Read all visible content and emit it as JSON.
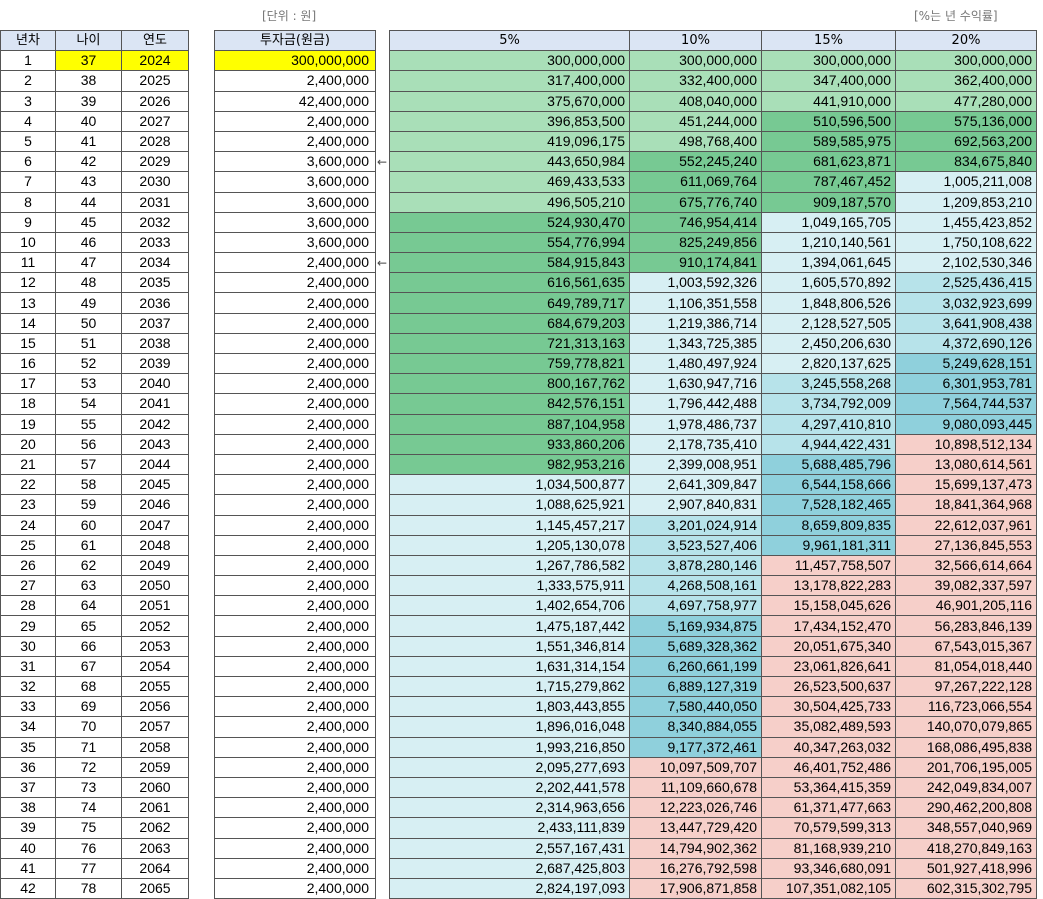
{
  "notes": {
    "unit": "[단위 : 원]",
    "rate": "[%는 년 수익률]"
  },
  "headers": {
    "year_no": "년차",
    "age": "나이",
    "year": "연도",
    "investment": "투자금(원금)",
    "rates": [
      "5%",
      "10%",
      "15%",
      "20%"
    ]
  },
  "arrows": [
    {
      "row": 6,
      "glyph": "←"
    },
    {
      "row": 11,
      "glyph": "←"
    }
  ],
  "colors": {
    "green_dark": "#77c993",
    "green_mid": "#8fd3a4",
    "green_light": "#a9dfb8",
    "cyan_light": "#d7eff3",
    "cyan_mid": "#b7e3ea",
    "cyan_dark": "#8fd0dc",
    "pink": "#f6cfc9",
    "yellow": "#ffff00"
  },
  "rows": [
    {
      "n": "1",
      "age": "37",
      "year": "2024",
      "inv": "300,000,000",
      "r": [
        "300,000,000",
        "300,000,000",
        "300,000,000",
        "300,000,000"
      ],
      "c": [
        "gl",
        "gl",
        "gl",
        "gl"
      ]
    },
    {
      "n": "2",
      "age": "38",
      "year": "2025",
      "inv": "2,400,000",
      "r": [
        "317,400,000",
        "332,400,000",
        "347,400,000",
        "362,400,000"
      ],
      "c": [
        "gl",
        "gl",
        "gl",
        "gl"
      ]
    },
    {
      "n": "3",
      "age": "39",
      "year": "2026",
      "inv": "42,400,000",
      "r": [
        "375,670,000",
        "408,040,000",
        "441,910,000",
        "477,280,000"
      ],
      "c": [
        "gl",
        "gl",
        "gl",
        "gl"
      ]
    },
    {
      "n": "4",
      "age": "40",
      "year": "2027",
      "inv": "2,400,000",
      "r": [
        "396,853,500",
        "451,244,000",
        "510,596,500",
        "575,136,000"
      ],
      "c": [
        "gl",
        "gl",
        "gd",
        "gd"
      ]
    },
    {
      "n": "5",
      "age": "41",
      "year": "2028",
      "inv": "2,400,000",
      "r": [
        "419,096,175",
        "498,768,400",
        "589,585,975",
        "692,563,200"
      ],
      "c": [
        "gl",
        "gl",
        "gd",
        "gd"
      ]
    },
    {
      "n": "6",
      "age": "42",
      "year": "2029",
      "inv": "3,600,000",
      "r": [
        "443,650,984",
        "552,245,240",
        "681,623,871",
        "834,675,840"
      ],
      "c": [
        "gl",
        "gd",
        "gd",
        "gd"
      ]
    },
    {
      "n": "7",
      "age": "43",
      "year": "2030",
      "inv": "3,600,000",
      "r": [
        "469,433,533",
        "611,069,764",
        "787,467,452",
        "1,005,211,008"
      ],
      "c": [
        "gl",
        "gd",
        "gd",
        "cl"
      ]
    },
    {
      "n": "8",
      "age": "44",
      "year": "2031",
      "inv": "3,600,000",
      "r": [
        "496,505,210",
        "675,776,740",
        "909,187,570",
        "1,209,853,210"
      ],
      "c": [
        "gl",
        "gd",
        "gd",
        "cl"
      ]
    },
    {
      "n": "9",
      "age": "45",
      "year": "2032",
      "inv": "3,600,000",
      "r": [
        "524,930,470",
        "746,954,414",
        "1,049,165,705",
        "1,455,423,852"
      ],
      "c": [
        "gd",
        "gd",
        "cl",
        "cl"
      ]
    },
    {
      "n": "10",
      "age": "46",
      "year": "2033",
      "inv": "3,600,000",
      "r": [
        "554,776,994",
        "825,249,856",
        "1,210,140,561",
        "1,750,108,622"
      ],
      "c": [
        "gd",
        "gd",
        "cl",
        "cl"
      ]
    },
    {
      "n": "11",
      "age": "47",
      "year": "2034",
      "inv": "2,400,000",
      "r": [
        "584,915,843",
        "910,174,841",
        "1,394,061,645",
        "2,102,530,346"
      ],
      "c": [
        "gd",
        "gd",
        "cl",
        "cl"
      ]
    },
    {
      "n": "12",
      "age": "48",
      "year": "2035",
      "inv": "2,400,000",
      "r": [
        "616,561,635",
        "1,003,592,326",
        "1,605,570,892",
        "2,525,436,415"
      ],
      "c": [
        "gd",
        "cl",
        "cl",
        "cm"
      ]
    },
    {
      "n": "13",
      "age": "49",
      "year": "2036",
      "inv": "2,400,000",
      "r": [
        "649,789,717",
        "1,106,351,558",
        "1,848,806,526",
        "3,032,923,699"
      ],
      "c": [
        "gd",
        "cl",
        "cl",
        "cm"
      ]
    },
    {
      "n": "14",
      "age": "50",
      "year": "2037",
      "inv": "2,400,000",
      "r": [
        "684,679,203",
        "1,219,386,714",
        "2,128,527,505",
        "3,641,908,438"
      ],
      "c": [
        "gd",
        "cl",
        "cl",
        "cm"
      ]
    },
    {
      "n": "15",
      "age": "51",
      "year": "2038",
      "inv": "2,400,000",
      "r": [
        "721,313,163",
        "1,343,725,385",
        "2,450,206,630",
        "4,372,690,126"
      ],
      "c": [
        "gd",
        "cl",
        "cl",
        "cm"
      ]
    },
    {
      "n": "16",
      "age": "52",
      "year": "2039",
      "inv": "2,400,000",
      "r": [
        "759,778,821",
        "1,480,497,924",
        "2,820,137,625",
        "5,249,628,151"
      ],
      "c": [
        "gd",
        "cl",
        "cl",
        "cd"
      ]
    },
    {
      "n": "17",
      "age": "53",
      "year": "2040",
      "inv": "2,400,000",
      "r": [
        "800,167,762",
        "1,630,947,716",
        "3,245,558,268",
        "6,301,953,781"
      ],
      "c": [
        "gd",
        "cl",
        "cm",
        "cd"
      ]
    },
    {
      "n": "18",
      "age": "54",
      "year": "2041",
      "inv": "2,400,000",
      "r": [
        "842,576,151",
        "1,796,442,488",
        "3,734,792,009",
        "7,564,744,537"
      ],
      "c": [
        "gd",
        "cl",
        "cm",
        "cd"
      ]
    },
    {
      "n": "19",
      "age": "55",
      "year": "2042",
      "inv": "2,400,000",
      "r": [
        "887,104,958",
        "1,978,486,737",
        "4,297,410,810",
        "9,080,093,445"
      ],
      "c": [
        "gd",
        "cl",
        "cm",
        "cd"
      ]
    },
    {
      "n": "20",
      "age": "56",
      "year": "2043",
      "inv": "2,400,000",
      "r": [
        "933,860,206",
        "2,178,735,410",
        "4,944,422,431",
        "10,898,512,134"
      ],
      "c": [
        "gd",
        "cl",
        "cm",
        "pk"
      ]
    },
    {
      "n": "21",
      "age": "57",
      "year": "2044",
      "inv": "2,400,000",
      "r": [
        "982,953,216",
        "2,399,008,951",
        "5,688,485,796",
        "13,080,614,561"
      ],
      "c": [
        "gd",
        "cl",
        "cd",
        "pk"
      ]
    },
    {
      "n": "22",
      "age": "58",
      "year": "2045",
      "inv": "2,400,000",
      "r": [
        "1,034,500,877",
        "2,641,309,847",
        "6,544,158,666",
        "15,699,137,473"
      ],
      "c": [
        "cl",
        "cl",
        "cd",
        "pk"
      ]
    },
    {
      "n": "23",
      "age": "59",
      "year": "2046",
      "inv": "2,400,000",
      "r": [
        "1,088,625,921",
        "2,907,840,831",
        "7,528,182,465",
        "18,841,364,968"
      ],
      "c": [
        "cl",
        "cl",
        "cd",
        "pk"
      ]
    },
    {
      "n": "24",
      "age": "60",
      "year": "2047",
      "inv": "2,400,000",
      "r": [
        "1,145,457,217",
        "3,201,024,914",
        "8,659,809,835",
        "22,612,037,961"
      ],
      "c": [
        "cl",
        "cm",
        "cd",
        "pk"
      ]
    },
    {
      "n": "25",
      "age": "61",
      "year": "2048",
      "inv": "2,400,000",
      "r": [
        "1,205,130,078",
        "3,523,527,406",
        "9,961,181,311",
        "27,136,845,553"
      ],
      "c": [
        "cl",
        "cm",
        "cd",
        "pk"
      ]
    },
    {
      "n": "26",
      "age": "62",
      "year": "2049",
      "inv": "2,400,000",
      "r": [
        "1,267,786,582",
        "3,878,280,146",
        "11,457,758,507",
        "32,566,614,664"
      ],
      "c": [
        "cl",
        "cm",
        "pk",
        "pk"
      ]
    },
    {
      "n": "27",
      "age": "63",
      "year": "2050",
      "inv": "2,400,000",
      "r": [
        "1,333,575,911",
        "4,268,508,161",
        "13,178,822,283",
        "39,082,337,597"
      ],
      "c": [
        "cl",
        "cm",
        "pk",
        "pk"
      ]
    },
    {
      "n": "28",
      "age": "64",
      "year": "2051",
      "inv": "2,400,000",
      "r": [
        "1,402,654,706",
        "4,697,758,977",
        "15,158,045,626",
        "46,901,205,116"
      ],
      "c": [
        "cl",
        "cm",
        "pk",
        "pk"
      ]
    },
    {
      "n": "29",
      "age": "65",
      "year": "2052",
      "inv": "2,400,000",
      "r": [
        "1,475,187,442",
        "5,169,934,875",
        "17,434,152,470",
        "56,283,846,139"
      ],
      "c": [
        "cl",
        "cd",
        "pk",
        "pk"
      ]
    },
    {
      "n": "30",
      "age": "66",
      "year": "2053",
      "inv": "2,400,000",
      "r": [
        "1,551,346,814",
        "5,689,328,362",
        "20,051,675,340",
        "67,543,015,367"
      ],
      "c": [
        "cl",
        "cd",
        "pk",
        "pk"
      ]
    },
    {
      "n": "31",
      "age": "67",
      "year": "2054",
      "inv": "2,400,000",
      "r": [
        "1,631,314,154",
        "6,260,661,199",
        "23,061,826,641",
        "81,054,018,440"
      ],
      "c": [
        "cl",
        "cd",
        "pk",
        "pk"
      ]
    },
    {
      "n": "32",
      "age": "68",
      "year": "2055",
      "inv": "2,400,000",
      "r": [
        "1,715,279,862",
        "6,889,127,319",
        "26,523,500,637",
        "97,267,222,128"
      ],
      "c": [
        "cl",
        "cd",
        "pk",
        "pk"
      ]
    },
    {
      "n": "33",
      "age": "69",
      "year": "2056",
      "inv": "2,400,000",
      "r": [
        "1,803,443,855",
        "7,580,440,050",
        "30,504,425,733",
        "116,723,066,554"
      ],
      "c": [
        "cl",
        "cd",
        "pk",
        "pk"
      ]
    },
    {
      "n": "34",
      "age": "70",
      "year": "2057",
      "inv": "2,400,000",
      "r": [
        "1,896,016,048",
        "8,340,884,055",
        "35,082,489,593",
        "140,070,079,865"
      ],
      "c": [
        "cl",
        "cd",
        "pk",
        "pk"
      ]
    },
    {
      "n": "35",
      "age": "71",
      "year": "2058",
      "inv": "2,400,000",
      "r": [
        "1,993,216,850",
        "9,177,372,461",
        "40,347,263,032",
        "168,086,495,838"
      ],
      "c": [
        "cl",
        "cd",
        "pk",
        "pk"
      ]
    },
    {
      "n": "36",
      "age": "72",
      "year": "2059",
      "inv": "2,400,000",
      "r": [
        "2,095,277,693",
        "10,097,509,707",
        "46,401,752,486",
        "201,706,195,005"
      ],
      "c": [
        "cl",
        "pk",
        "pk",
        "pk"
      ]
    },
    {
      "n": "37",
      "age": "73",
      "year": "2060",
      "inv": "2,400,000",
      "r": [
        "2,202,441,578",
        "11,109,660,678",
        "53,364,415,359",
        "242,049,834,007"
      ],
      "c": [
        "cl",
        "pk",
        "pk",
        "pk"
      ]
    },
    {
      "n": "38",
      "age": "74",
      "year": "2061",
      "inv": "2,400,000",
      "r": [
        "2,314,963,656",
        "12,223,026,746",
        "61,371,477,663",
        "290,462,200,808"
      ],
      "c": [
        "cl",
        "pk",
        "pk",
        "pk"
      ]
    },
    {
      "n": "39",
      "age": "75",
      "year": "2062",
      "inv": "2,400,000",
      "r": [
        "2,433,111,839",
        "13,447,729,420",
        "70,579,599,313",
        "348,557,040,969"
      ],
      "c": [
        "cl",
        "pk",
        "pk",
        "pk"
      ]
    },
    {
      "n": "40",
      "age": "76",
      "year": "2063",
      "inv": "2,400,000",
      "r": [
        "2,557,167,431",
        "14,794,902,362",
        "81,168,939,210",
        "418,270,849,163"
      ],
      "c": [
        "cl",
        "pk",
        "pk",
        "pk"
      ]
    },
    {
      "n": "41",
      "age": "77",
      "year": "2064",
      "inv": "2,400,000",
      "r": [
        "2,687,425,803",
        "16,276,792,598",
        "93,346,680,091",
        "501,927,418,996"
      ],
      "c": [
        "cl",
        "pk",
        "pk",
        "pk"
      ]
    },
    {
      "n": "42",
      "age": "78",
      "year": "2065",
      "inv": "2,400,000",
      "r": [
        "2,824,197,093",
        "17,906,871,858",
        "107,351,082,105",
        "602,315,302,795"
      ],
      "c": [
        "cl",
        "pk",
        "pk",
        "pk"
      ]
    }
  ]
}
